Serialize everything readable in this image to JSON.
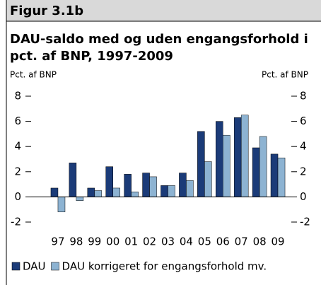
{
  "chart_data": {
    "type": "bar",
    "header": "Figur 3.1b",
    "title_lines": [
      "DAU-saldo med og uden engangsforhold i",
      "pct. af BNP, 1997-2009"
    ],
    "ylabel": "Pct. af BNP",
    "y2label": "Pct. af BNP",
    "categories": [
      "97",
      "98",
      "99",
      "00",
      "01",
      "02",
      "03",
      "04",
      "05",
      "06",
      "07",
      "08",
      "09"
    ],
    "series": [
      {
        "name": "DAU",
        "color": "#1b3b78",
        "values": [
          0.7,
          2.7,
          0.7,
          2.4,
          1.8,
          1.9,
          0.9,
          1.9,
          5.2,
          6.0,
          6.3,
          3.9,
          3.4
        ]
      },
      {
        "name": "DAU korrigeret for engangsforhold mv.",
        "color": "#8db3d2",
        "values": [
          -1.2,
          -0.3,
          0.5,
          0.7,
          0.4,
          1.6,
          0.9,
          1.3,
          2.8,
          4.9,
          6.5,
          4.8,
          3.1
        ]
      }
    ],
    "ylim": [
      -2,
      8
    ],
    "yticks": [
      -2,
      0,
      2,
      4,
      6,
      8
    ],
    "y2lim": [
      -2,
      8
    ],
    "y2ticks": [
      -2,
      0,
      2,
      4,
      6,
      8
    ]
  }
}
